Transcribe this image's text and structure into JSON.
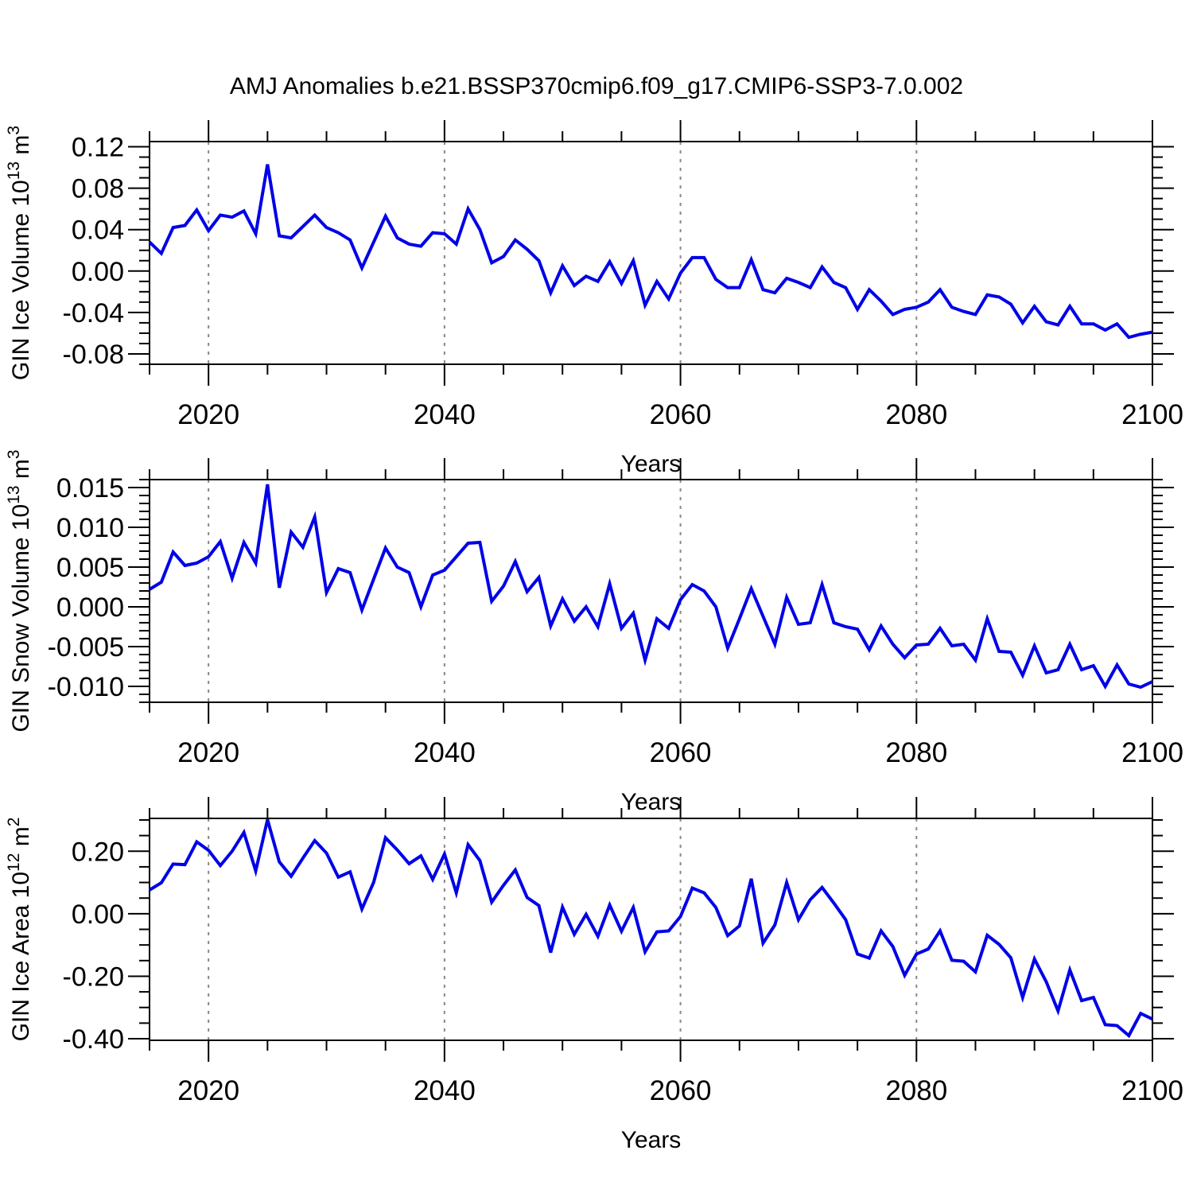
{
  "title": "AMJ Anomalies b.e21.BSSP370cmip6.f09_g17.CMIP6-SSP3-7.0.002",
  "style": {
    "line_color": "#0000e8",
    "grid_color": "#888888",
    "frame_color": "#000000",
    "text_color": "#000000"
  },
  "chart_data": [
    {
      "type": "line",
      "name": "gin-ice-volume",
      "ylabel_parts": [
        {
          "text": "GIN Ice Volume 10",
          "sup": false
        },
        {
          "text": "13",
          "sup": true
        },
        {
          "text": " m",
          "sup": false
        },
        {
          "text": "3",
          "sup": true
        }
      ],
      "xlabel": "Years",
      "xlim": [
        2015,
        2100
      ],
      "ylim": [
        -0.09,
        0.125
      ],
      "x_start": 2015,
      "x_step": 1,
      "xticks": {
        "major": [
          2020,
          2040,
          2060,
          2080,
          2100
        ],
        "labels": [
          "2020",
          "2040",
          "2060",
          "2080",
          "2100"
        ],
        "minor_step": 5
      },
      "yticks": {
        "major": [
          0.12,
          0.08,
          0.04,
          0.0,
          -0.04,
          -0.08
        ],
        "labels": [
          "0.12",
          "0.08",
          "0.04",
          "0.00",
          "-0.04",
          "-0.08"
        ],
        "minor_step": 0.01
      },
      "gridlines_x": [
        2020,
        2040,
        2060,
        2080
      ],
      "grid": "vertical-dashed",
      "legend": "none",
      "values": [
        0.028,
        0.017,
        0.042,
        0.044,
        0.059,
        0.039,
        0.054,
        0.052,
        0.058,
        0.036,
        0.103,
        0.034,
        0.032,
        0.043,
        0.054,
        0.042,
        0.037,
        0.03,
        0.003,
        0.028,
        0.053,
        0.032,
        0.026,
        0.024,
        0.037,
        0.036,
        0.026,
        0.06,
        0.04,
        0.008,
        0.014,
        0.03,
        0.021,
        0.01,
        -0.021,
        0.005,
        -0.014,
        -0.005,
        -0.01,
        0.009,
        -0.012,
        0.01,
        -0.033,
        -0.01,
        -0.027,
        -0.002,
        0.013,
        0.013,
        -0.008,
        -0.016,
        -0.016,
        0.011,
        -0.018,
        -0.021,
        -0.007,
        -0.011,
        -0.016,
        0.004,
        -0.011,
        -0.016,
        -0.037,
        -0.018,
        -0.029,
        -0.042,
        -0.037,
        -0.035,
        -0.03,
        -0.018,
        -0.035,
        -0.039,
        -0.042,
        -0.023,
        -0.025,
        -0.032,
        -0.05,
        -0.034,
        -0.049,
        -0.052,
        -0.034,
        -0.051,
        -0.051,
        -0.057,
        -0.051,
        -0.064,
        -0.061,
        -0.059
      ]
    },
    {
      "type": "line",
      "name": "gin-snow-volume",
      "ylabel_parts": [
        {
          "text": "GIN Snow Volume 10",
          "sup": false
        },
        {
          "text": "13",
          "sup": true
        },
        {
          "text": " m",
          "sup": false
        },
        {
          "text": "3",
          "sup": true
        }
      ],
      "xlabel": "Years",
      "xlim": [
        2015,
        2100
      ],
      "ylim": [
        -0.012,
        0.016
      ],
      "x_start": 2015,
      "x_step": 1,
      "xticks": {
        "major": [
          2020,
          2040,
          2060,
          2080,
          2100
        ],
        "labels": [
          "2020",
          "2040",
          "2060",
          "2080",
          "2100"
        ],
        "minor_step": 5
      },
      "yticks": {
        "major": [
          0.015,
          0.01,
          0.005,
          0.0,
          -0.005,
          -0.01
        ],
        "labels": [
          "0.015",
          "0.010",
          "0.005",
          "0.000",
          "-0.005",
          "-0.010"
        ],
        "minor_step": 0.001
      },
      "gridlines_x": [
        2020,
        2040,
        2060,
        2080
      ],
      "grid": "vertical-dashed",
      "legend": "none",
      "values": [
        0.0022,
        0.0031,
        0.0069,
        0.0052,
        0.0055,
        0.0063,
        0.0082,
        0.0036,
        0.0081,
        0.0055,
        0.0154,
        0.0024,
        0.0094,
        0.0075,
        0.0113,
        0.0018,
        0.0048,
        0.0043,
        -0.0004,
        0.0035,
        0.0074,
        0.005,
        0.0043,
        0.0,
        0.004,
        0.0046,
        0.0063,
        0.008,
        0.0081,
        0.0007,
        0.0026,
        0.0057,
        0.0019,
        0.0037,
        -0.0024,
        0.001,
        -0.0018,
        0.0,
        -0.0025,
        0.0029,
        -0.0027,
        -0.0008,
        -0.0067,
        -0.0015,
        -0.0027,
        0.0009,
        0.0028,
        0.002,
        0.0,
        -0.0052,
        -0.0015,
        0.0023,
        -0.0012,
        -0.0047,
        0.0012,
        -0.0022,
        -0.002,
        0.0028,
        -0.002,
        -0.0025,
        -0.0028,
        -0.0054,
        -0.0024,
        -0.0047,
        -0.0064,
        -0.0048,
        -0.0047,
        -0.0027,
        -0.0049,
        -0.0047,
        -0.0067,
        -0.0015,
        -0.0056,
        -0.0057,
        -0.0086,
        -0.0049,
        -0.0083,
        -0.0079,
        -0.0047,
        -0.0079,
        -0.0074,
        -0.01,
        -0.0073,
        -0.0097,
        -0.0101,
        -0.0094
      ]
    },
    {
      "type": "line",
      "name": "gin-ice-area",
      "ylabel_parts": [
        {
          "text": "GIN Ice Area 10",
          "sup": false
        },
        {
          "text": "12",
          "sup": true
        },
        {
          "text": " m",
          "sup": false
        },
        {
          "text": "2",
          "sup": true
        }
      ],
      "xlabel": "Years",
      "xlim": [
        2015,
        2100
      ],
      "ylim": [
        -0.405,
        0.305
      ],
      "x_start": 2015,
      "x_step": 1,
      "xticks": {
        "major": [
          2020,
          2040,
          2060,
          2080,
          2100
        ],
        "labels": [
          "2020",
          "2040",
          "2060",
          "2080",
          "2100"
        ],
        "minor_step": 5
      },
      "yticks": {
        "major": [
          0.2,
          0.0,
          -0.2,
          -0.4
        ],
        "labels": [
          "0.20",
          "0.00",
          "-0.20",
          "-0.40"
        ],
        "minor_step": 0.05
      },
      "gridlines_x": [
        2020,
        2040,
        2060,
        2080
      ],
      "grid": "vertical-dashed",
      "legend": "none",
      "values": [
        0.076,
        0.099,
        0.159,
        0.157,
        0.23,
        0.203,
        0.154,
        0.2,
        0.26,
        0.137,
        0.301,
        0.166,
        0.12,
        0.178,
        0.234,
        0.194,
        0.117,
        0.134,
        0.015,
        0.101,
        0.243,
        0.204,
        0.16,
        0.185,
        0.11,
        0.191,
        0.067,
        0.221,
        0.17,
        0.037,
        0.091,
        0.14,
        0.052,
        0.026,
        -0.124,
        0.021,
        -0.066,
        -0.002,
        -0.072,
        0.028,
        -0.056,
        0.02,
        -0.122,
        -0.058,
        -0.055,
        -0.009,
        0.082,
        0.067,
        0.02,
        -0.07,
        -0.039,
        0.112,
        -0.094,
        -0.036,
        0.1,
        -0.019,
        0.045,
        0.084,
        0.034,
        -0.019,
        -0.129,
        -0.142,
        -0.055,
        -0.105,
        -0.197,
        -0.129,
        -0.113,
        -0.055,
        -0.149,
        -0.152,
        -0.186,
        -0.069,
        -0.098,
        -0.141,
        -0.268,
        -0.145,
        -0.218,
        -0.311,
        -0.18,
        -0.278,
        -0.268,
        -0.355,
        -0.358,
        -0.39,
        -0.319,
        -0.337
      ]
    }
  ]
}
